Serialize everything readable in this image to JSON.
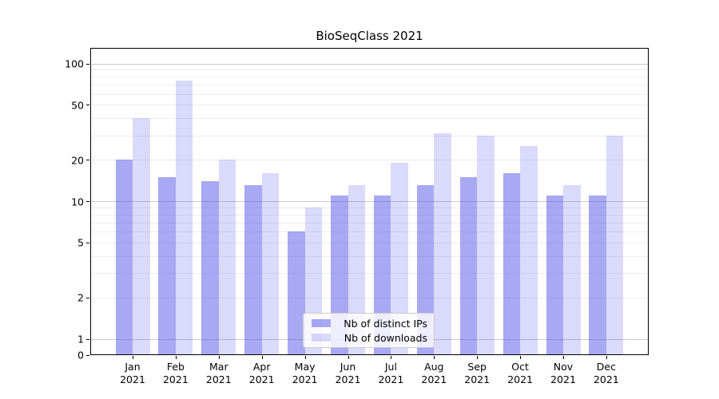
{
  "chart_data": {
    "type": "bar",
    "title": "BioSeqClass 2021",
    "categories": [
      "Jan",
      "Feb",
      "Mar",
      "Apr",
      "May",
      "Jun",
      "Jul",
      "Aug",
      "Sep",
      "Oct",
      "Nov",
      "Dec"
    ],
    "year_suffix": "2021",
    "series": [
      {
        "name": "Nb of distinct IPs",
        "color": "rgba(70,70,230,0.47)",
        "values": [
          20,
          15,
          14,
          13,
          6,
          11,
          11,
          13,
          15,
          16,
          11,
          11
        ]
      },
      {
        "name": "Nb of downloads",
        "color": "rgba(70,70,230,0.2)",
        "values": [
          40,
          75,
          20,
          16,
          9,
          13,
          19,
          31,
          30,
          25,
          13,
          30
        ]
      }
    ],
    "yscale": "log",
    "ylim": [
      0,
      100
    ],
    "yticks": [
      100,
      50,
      20,
      10,
      5,
      2,
      1,
      0
    ],
    "grid": "on",
    "legend_position": "bottom-center"
  }
}
